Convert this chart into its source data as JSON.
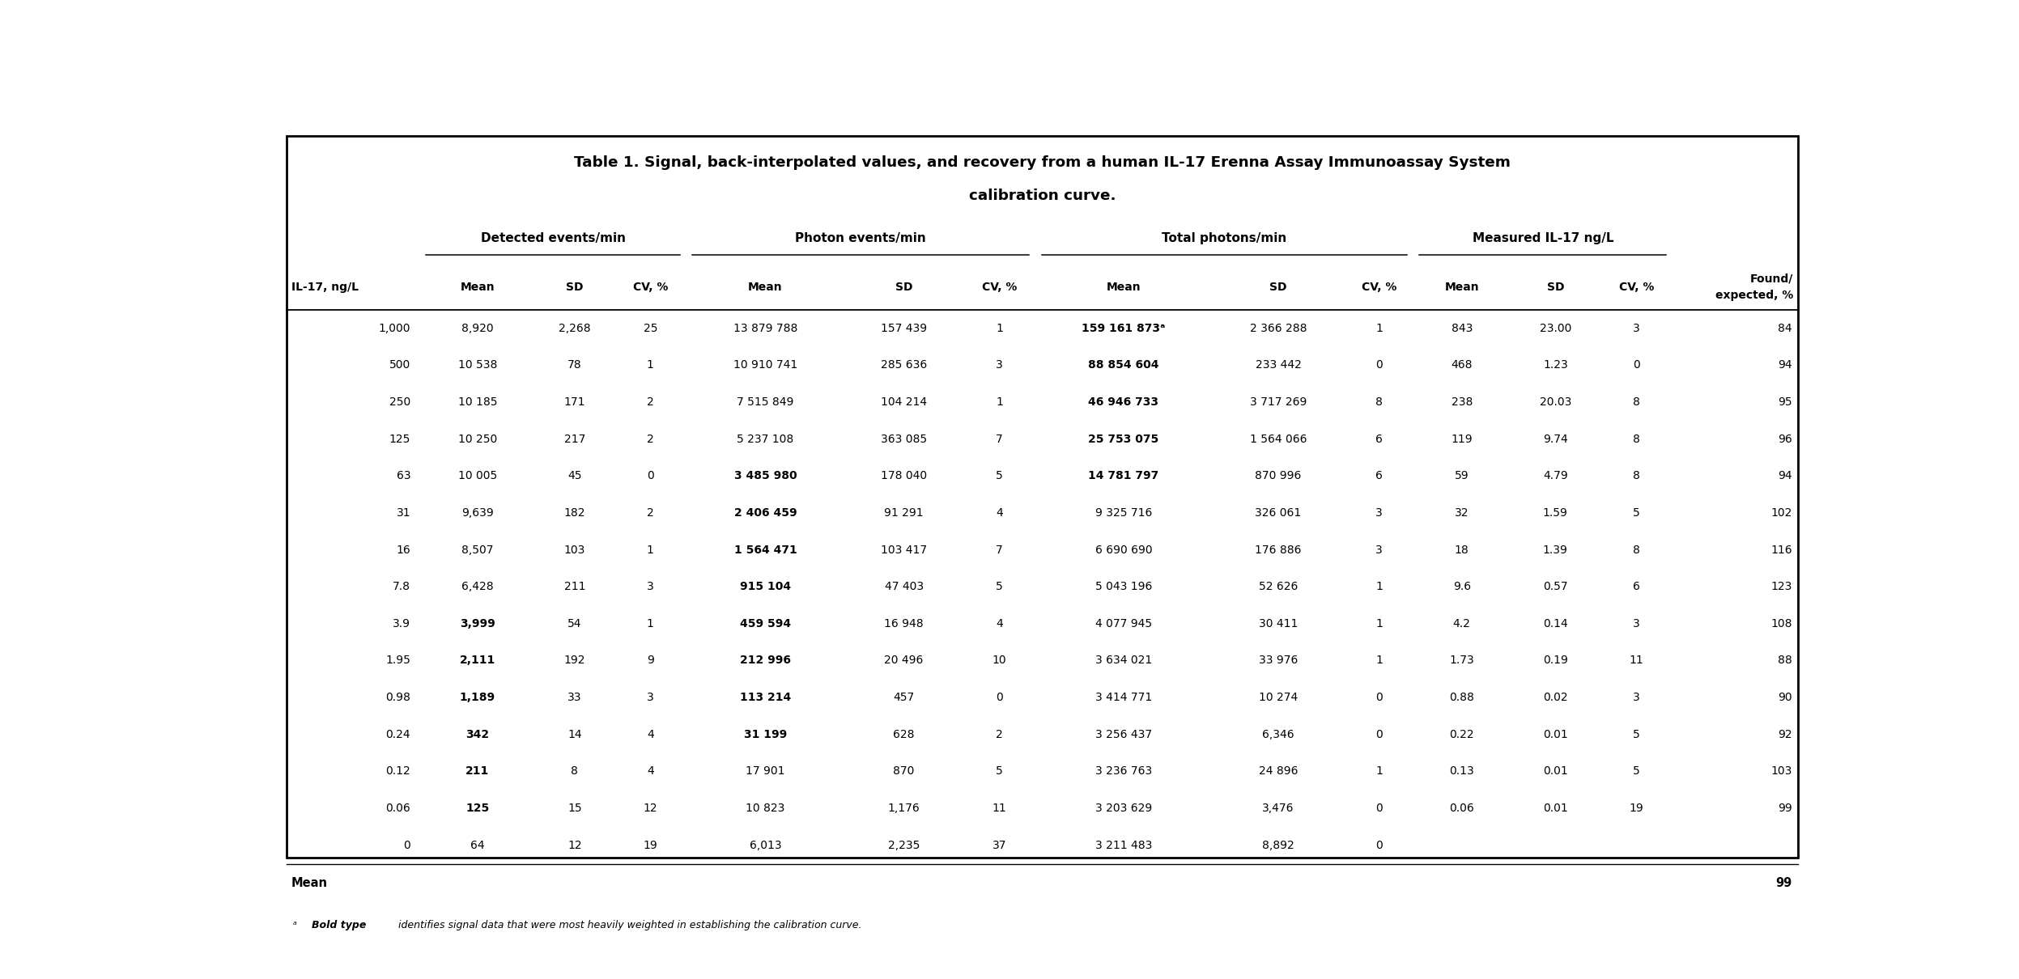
{
  "title_line1": "Table 1. Signal, back-interpolated values, and recovery from a human IL-17 Erenna Assay Immunoassay System",
  "title_line2": "calibration curve.",
  "col_headers": [
    "IL-17, ng/L",
    "Mean",
    "SD",
    "CV, %",
    "Mean",
    "SD",
    "CV, %",
    "Mean",
    "SD",
    "CV, %",
    "Mean",
    "SD",
    "CV, %",
    "Found/\nexpected, %"
  ],
  "rows": [
    [
      "1,000",
      "8,920",
      "2,268",
      "25",
      "13 879 788",
      "157 439",
      "1",
      "159 161 873ᵃ",
      "2 366 288",
      "1",
      "843",
      "23.00",
      "3",
      "84"
    ],
    [
      "500",
      "10 538",
      "78",
      "1",
      "10 910 741",
      "285 636",
      "3",
      "88 854 604",
      "233 442",
      "0",
      "468",
      "1.23",
      "0",
      "94"
    ],
    [
      "250",
      "10 185",
      "171",
      "2",
      "7 515 849",
      "104 214",
      "1",
      "46 946 733",
      "3 717 269",
      "8",
      "238",
      "20.03",
      "8",
      "95"
    ],
    [
      "125",
      "10 250",
      "217",
      "2",
      "5 237 108",
      "363 085",
      "7",
      "25 753 075",
      "1 564 066",
      "6",
      "119",
      "9.74",
      "8",
      "96"
    ],
    [
      "63",
      "10 005",
      "45",
      "0",
      "3 485 980",
      "178 040",
      "5",
      "14 781 797",
      "870 996",
      "6",
      "59",
      "4.79",
      "8",
      "94"
    ],
    [
      "31",
      "9,639",
      "182",
      "2",
      "2 406 459",
      "91 291",
      "4",
      "9 325 716",
      "326 061",
      "3",
      "32",
      "1.59",
      "5",
      "102"
    ],
    [
      "16",
      "8,507",
      "103",
      "1",
      "1 564 471",
      "103 417",
      "7",
      "6 690 690",
      "176 886",
      "3",
      "18",
      "1.39",
      "8",
      "116"
    ],
    [
      "7.8",
      "6,428",
      "211",
      "3",
      "915 104",
      "47 403",
      "5",
      "5 043 196",
      "52 626",
      "1",
      "9.6",
      "0.57",
      "6",
      "123"
    ],
    [
      "3.9",
      "3,999",
      "54",
      "1",
      "459 594",
      "16 948",
      "4",
      "4 077 945",
      "30 411",
      "1",
      "4.2",
      "0.14",
      "3",
      "108"
    ],
    [
      "1.95",
      "2,111",
      "192",
      "9",
      "212 996",
      "20 496",
      "10",
      "3 634 021",
      "33 976",
      "1",
      "1.73",
      "0.19",
      "11",
      "88"
    ],
    [
      "0.98",
      "1,189",
      "33",
      "3",
      "113 214",
      "457",
      "0",
      "3 414 771",
      "10 274",
      "0",
      "0.88",
      "0.02",
      "3",
      "90"
    ],
    [
      "0.24",
      "342",
      "14",
      "4",
      "31 199",
      "628",
      "2",
      "3 256 437",
      "6,346",
      "0",
      "0.22",
      "0.01",
      "5",
      "92"
    ],
    [
      "0.12",
      "211",
      "8",
      "4",
      "17 901",
      "870",
      "5",
      "3 236 763",
      "24 896",
      "1",
      "0.13",
      "0.01",
      "5",
      "103"
    ],
    [
      "0.06",
      "125",
      "15",
      "12",
      "10 823",
      "1,176",
      "11",
      "3 203 629",
      "3,476",
      "0",
      "0.06",
      "0.01",
      "19",
      "99"
    ],
    [
      "0",
      "64",
      "12",
      "19",
      "6,013",
      "2,235",
      "37",
      "3 211 483",
      "8,892",
      "0",
      "",
      "",
      "",
      ""
    ]
  ],
  "bold_det_mean_rows": [
    8,
    9,
    10,
    11,
    12,
    13
  ],
  "bold_phot_mean_rows": [
    4,
    5,
    6,
    7,
    8,
    9,
    10,
    11
  ],
  "bold_total_mean_rows": [
    0,
    1,
    2,
    3,
    4
  ],
  "bg_color": "#ffffff"
}
